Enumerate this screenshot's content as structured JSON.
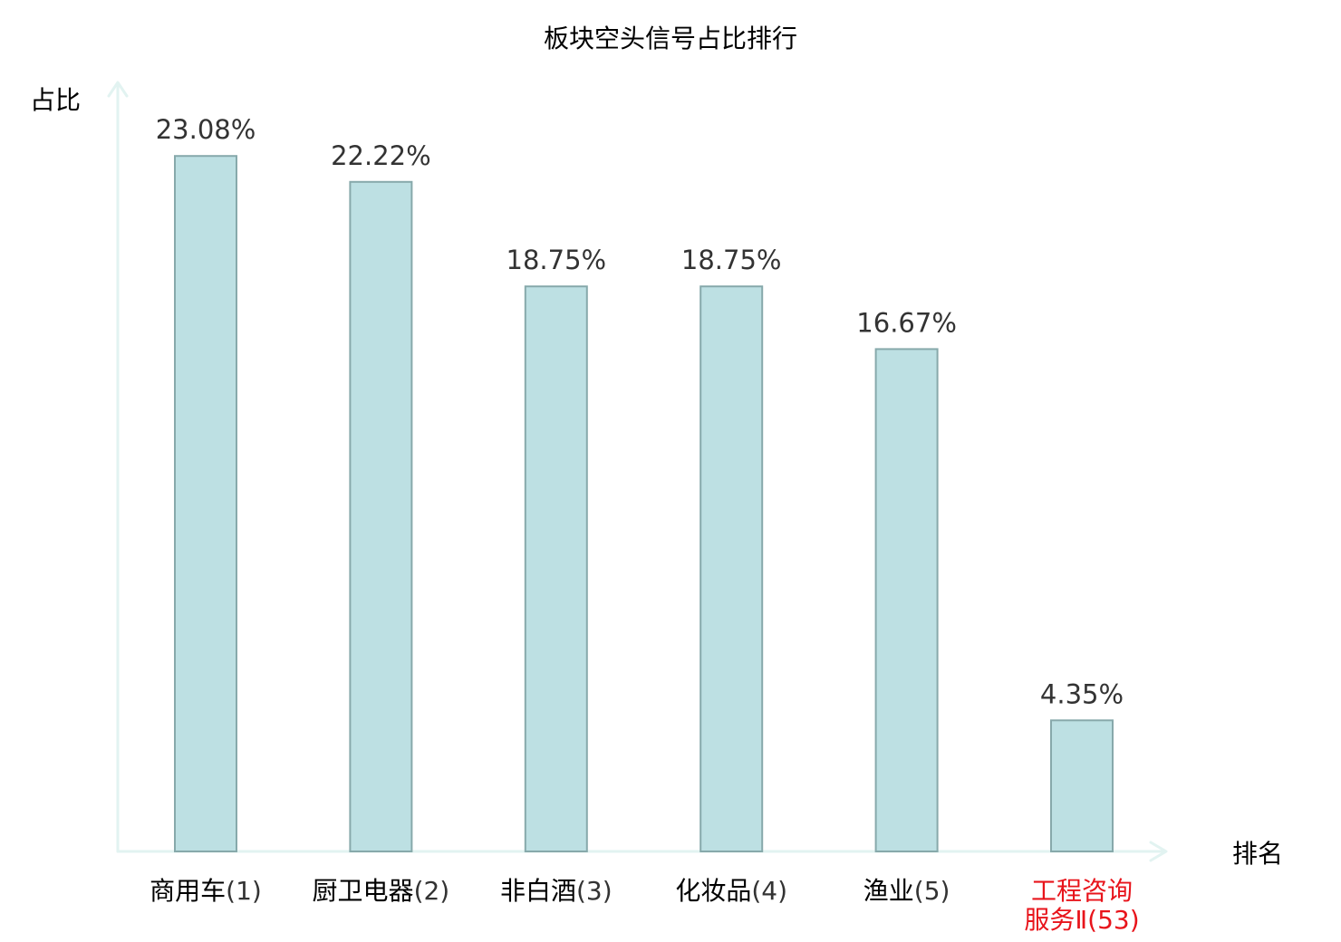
{
  "chart_data": {
    "type": "bar",
    "title": "板块空头信号占比排行",
    "ylabel": "占比",
    "xlabel": "排名",
    "categories": [
      {
        "name": "商用车",
        "rank": "(1)",
        "highlight": false
      },
      {
        "name": "厨卫电器",
        "rank": "(2)",
        "highlight": false
      },
      {
        "name": "非白酒",
        "rank": "(3)",
        "highlight": false
      },
      {
        "name": "化妆品",
        "rank": "(4)",
        "highlight": false
      },
      {
        "name": "渔业",
        "rank": "(5)",
        "highlight": false
      },
      {
        "name": "工程咨询",
        "name_line2": "服务Ⅱ",
        "rank": "(53)",
        "highlight": true
      }
    ],
    "values": [
      23.08,
      22.22,
      18.75,
      18.75,
      16.67,
      4.35
    ],
    "value_labels": [
      "23.08%",
      "22.22%",
      "18.75%",
      "18.75%",
      "16.67%",
      "4.35%"
    ],
    "ylim": [
      0,
      25.4
    ],
    "grid": false,
    "legend": "none",
    "colors": {
      "bar_fill": "#bde0e3",
      "bar_stroke": "#87a9ab",
      "axis": "#e2f3f1",
      "highlight_text": "#e8141b",
      "normal_text": "#000000",
      "rank_text": "#333333"
    }
  }
}
